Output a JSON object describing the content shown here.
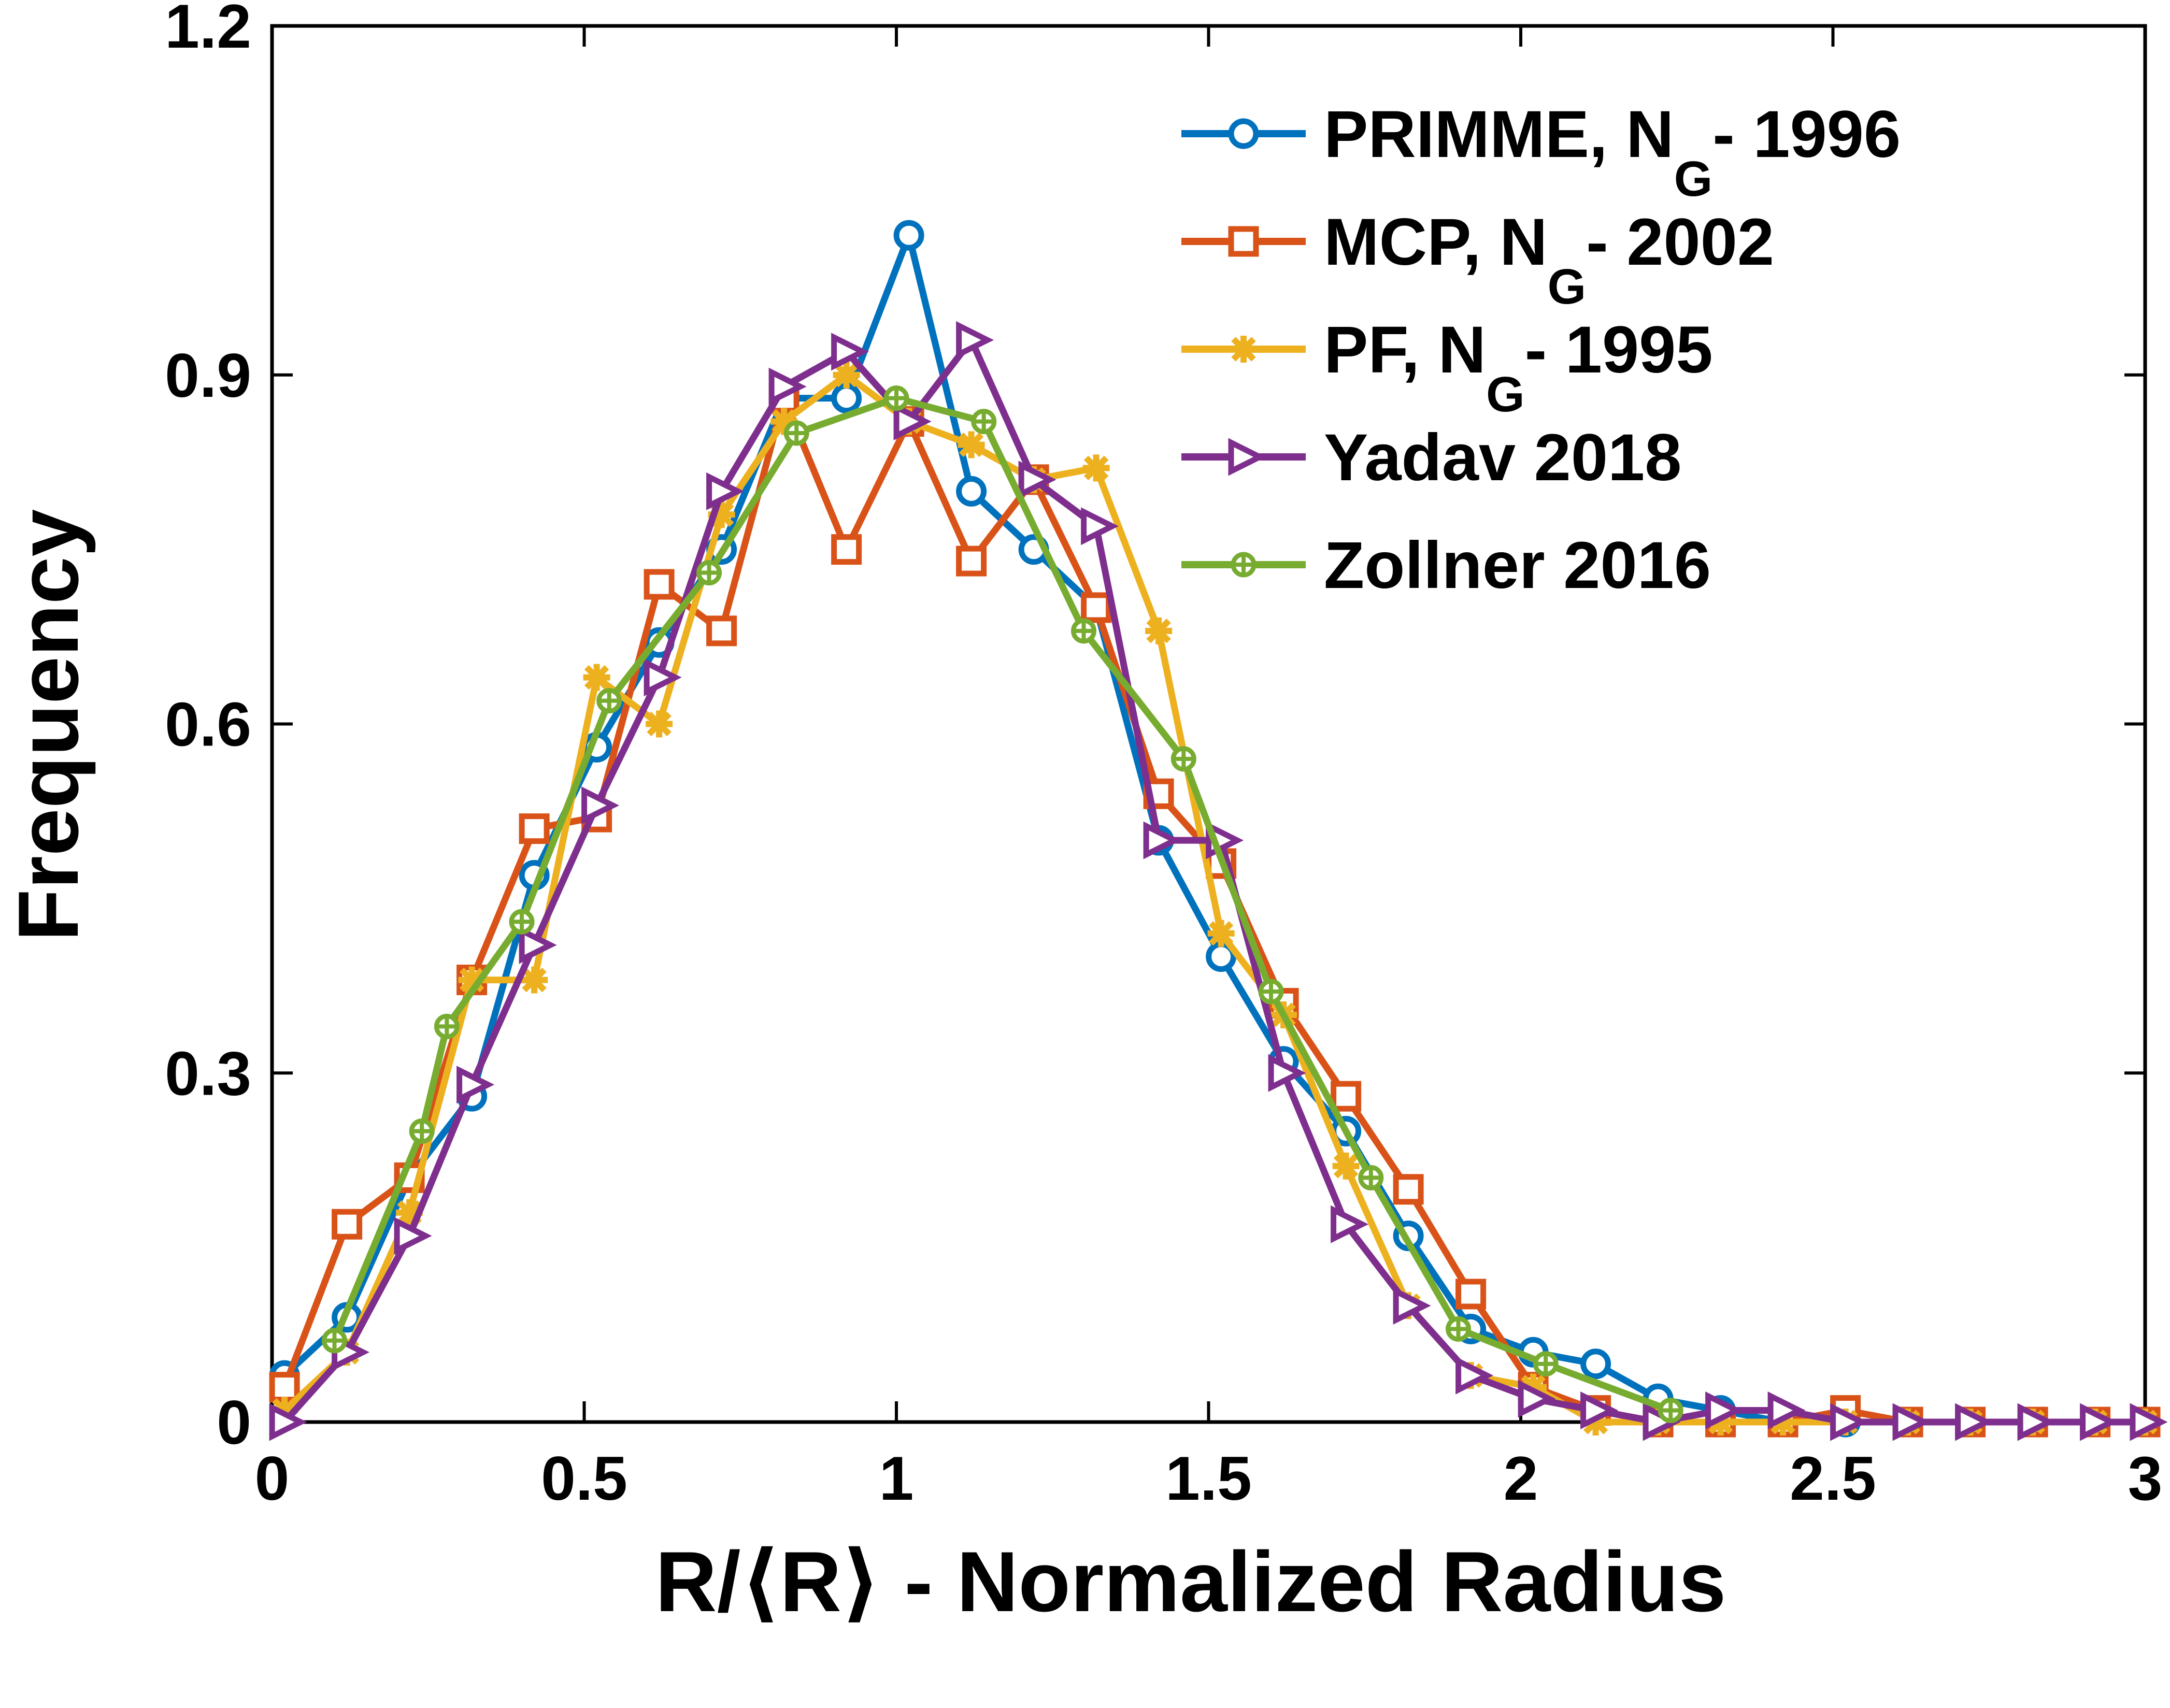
{
  "chart_data": {
    "type": "line",
    "title": "",
    "xlabel": "R/⟨R⟩ -  Normalized Radius",
    "ylabel": "Frequency",
    "xlim": [
      0,
      3
    ],
    "ylim": [
      0,
      1.2
    ],
    "xticks": [
      "0",
      "0.5",
      "1",
      "1.5",
      "2",
      "2.5",
      "3"
    ],
    "yticks": [
      "0",
      "0.3",
      "0.6",
      "0.9",
      "1.2"
    ],
    "grid": false,
    "legend_position": "top-right",
    "series": [
      {
        "name": "PRIMME, NG- 1996",
        "name_main": "PRIMME, N",
        "name_sub": "G",
        "name_tail": "- 1996",
        "color": "#0072BD",
        "marker": "circle",
        "x": [
          0.02,
          0.12,
          0.22,
          0.32,
          0.42,
          0.52,
          0.62,
          0.72,
          0.82,
          0.92,
          1.02,
          1.12,
          1.22,
          1.32,
          1.42,
          1.52,
          1.62,
          1.72,
          1.82,
          1.92,
          2.02,
          2.12,
          2.22,
          2.32,
          2.42,
          2.52,
          2.62,
          2.72,
          2.82,
          2.92,
          3.0
        ],
        "y": [
          0.04,
          0.09,
          0.21,
          0.28,
          0.47,
          0.58,
          0.67,
          0.75,
          0.88,
          0.88,
          1.02,
          0.8,
          0.75,
          0.7,
          0.5,
          0.4,
          0.31,
          0.25,
          0.16,
          0.08,
          0.06,
          0.05,
          0.02,
          0.01,
          0.0,
          0.0,
          0.0,
          0.0,
          0.0,
          0.0,
          0.0
        ]
      },
      {
        "name": "MCP, NG- 2002",
        "name_main": "MCP, N",
        "name_sub": "G",
        "name_tail": "- 2002",
        "color": "#D95319",
        "marker": "square",
        "x": [
          0.02,
          0.12,
          0.22,
          0.32,
          0.42,
          0.52,
          0.62,
          0.72,
          0.82,
          0.92,
          1.02,
          1.12,
          1.22,
          1.32,
          1.42,
          1.52,
          1.62,
          1.72,
          1.82,
          1.92,
          2.02,
          2.12,
          2.22,
          2.32,
          2.42,
          2.52,
          2.62,
          2.72,
          2.82,
          2.92,
          3.0
        ],
        "y": [
          0.03,
          0.17,
          0.21,
          0.38,
          0.51,
          0.52,
          0.72,
          0.68,
          0.88,
          0.75,
          0.86,
          0.74,
          0.81,
          0.7,
          0.54,
          0.48,
          0.36,
          0.28,
          0.2,
          0.11,
          0.03,
          0.01,
          0.0,
          0.0,
          0.0,
          0.01,
          0.0,
          0.0,
          0.0,
          0.0,
          0.0
        ]
      },
      {
        "name": "PF, NG- 1995",
        "name_main": "PF, N",
        "name_sub": "G",
        "name_tail": "- 1995",
        "color": "#EDB120",
        "marker": "star",
        "x": [
          0.02,
          0.12,
          0.22,
          0.32,
          0.42,
          0.52,
          0.62,
          0.72,
          0.82,
          0.92,
          1.02,
          1.12,
          1.22,
          1.32,
          1.42,
          1.52,
          1.62,
          1.72,
          1.82,
          1.92,
          2.02,
          2.12,
          2.22,
          2.32,
          2.42,
          2.52,
          2.62,
          2.72,
          2.82,
          2.92,
          3.0
        ],
        "y": [
          0.01,
          0.06,
          0.18,
          0.38,
          0.38,
          0.64,
          0.6,
          0.78,
          0.86,
          0.9,
          0.86,
          0.84,
          0.81,
          0.82,
          0.68,
          0.42,
          0.35,
          0.22,
          0.1,
          0.04,
          0.03,
          0.0,
          0.0,
          0.0,
          0.0,
          0.0,
          0.0,
          0.0,
          0.0,
          0.0,
          0.0
        ]
      },
      {
        "name": "Yadav 2018",
        "color": "#7E2F8E",
        "marker": "triangle-right",
        "x": [
          0.02,
          0.12,
          0.22,
          0.32,
          0.42,
          0.52,
          0.62,
          0.72,
          0.82,
          0.92,
          1.02,
          1.12,
          1.22,
          1.32,
          1.42,
          1.52,
          1.62,
          1.72,
          1.82,
          1.92,
          2.02,
          2.12,
          2.22,
          2.32,
          2.42,
          2.52,
          2.62,
          2.72,
          2.82,
          2.92,
          3.0
        ],
        "y": [
          0.0,
          0.06,
          0.16,
          0.29,
          0.41,
          0.53,
          0.64,
          0.8,
          0.89,
          0.92,
          0.86,
          0.93,
          0.81,
          0.77,
          0.5,
          0.5,
          0.3,
          0.17,
          0.1,
          0.04,
          0.02,
          0.01,
          0.0,
          0.01,
          0.01,
          0.0,
          0.0,
          0.0,
          0.0,
          0.0,
          0.0
        ]
      },
      {
        "name": "Zollner 2016",
        "color": "#77AC30",
        "marker": "diamond-star",
        "x": [
          0.1,
          0.24,
          0.28,
          0.4,
          0.54,
          0.7,
          0.84,
          1.0,
          1.14,
          1.3,
          1.46,
          1.6,
          1.76,
          1.9,
          2.04,
          2.24
        ],
        "y": [
          0.07,
          0.25,
          0.34,
          0.43,
          0.62,
          0.73,
          0.85,
          0.88,
          0.86,
          0.68,
          0.57,
          0.37,
          0.21,
          0.08,
          0.05,
          0.01
        ]
      }
    ]
  }
}
